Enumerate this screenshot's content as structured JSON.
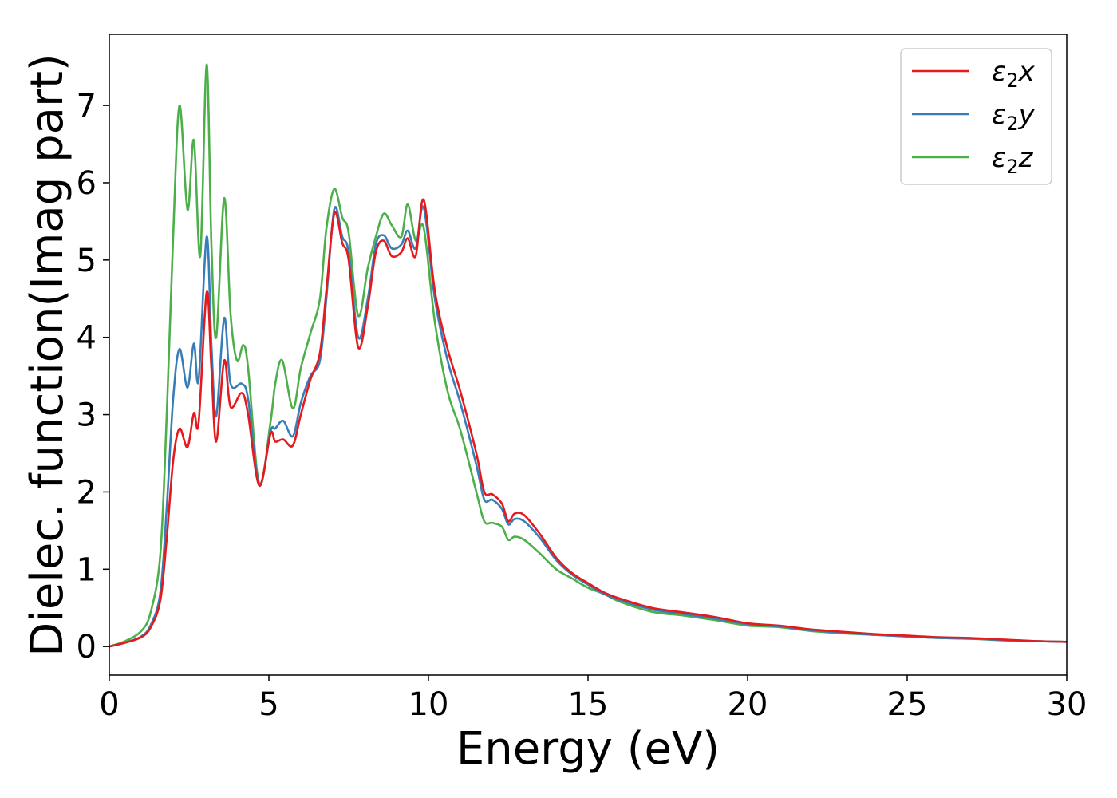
{
  "chart_data": {
    "type": "line",
    "xlabel": "Energy (eV)",
    "ylabel": "Dielec. function(Imag part)",
    "xlim": [
      0,
      30
    ],
    "ylim": [
      -0.37,
      7.92
    ],
    "xticks": [
      "0",
      "5",
      "10",
      "15",
      "20",
      "25",
      "30"
    ],
    "yticks": [
      "0",
      "1",
      "2",
      "3",
      "4",
      "5",
      "6",
      "7"
    ],
    "grid": false,
    "legend_position": "top-right",
    "colors": {
      "x": "#e41a1c",
      "y": "#377eb8",
      "z": "#4daf4a"
    },
    "series": [
      {
        "name": "ε2x",
        "name_base": "ε",
        "name_sub": "2",
        "name_suffix": "x",
        "points": [
          [
            0,
            0
          ],
          [
            0.5,
            0.05
          ],
          [
            1.0,
            0.12
          ],
          [
            1.3,
            0.25
          ],
          [
            1.6,
            0.6
          ],
          [
            1.8,
            1.4
          ],
          [
            2.0,
            2.4
          ],
          [
            2.2,
            2.82
          ],
          [
            2.45,
            2.58
          ],
          [
            2.65,
            3.02
          ],
          [
            2.8,
            2.9
          ],
          [
            3.05,
            4.58
          ],
          [
            3.2,
            3.6
          ],
          [
            3.35,
            2.65
          ],
          [
            3.6,
            3.7
          ],
          [
            3.8,
            3.1
          ],
          [
            4.15,
            3.28
          ],
          [
            4.35,
            3.0
          ],
          [
            4.7,
            2.08
          ],
          [
            5.05,
            2.75
          ],
          [
            5.2,
            2.65
          ],
          [
            5.45,
            2.68
          ],
          [
            5.75,
            2.6
          ],
          [
            6.0,
            3.0
          ],
          [
            6.3,
            3.45
          ],
          [
            6.6,
            3.8
          ],
          [
            6.8,
            4.6
          ],
          [
            7.05,
            5.6
          ],
          [
            7.3,
            5.22
          ],
          [
            7.5,
            5.0
          ],
          [
            7.8,
            3.87
          ],
          [
            8.1,
            4.4
          ],
          [
            8.35,
            5.1
          ],
          [
            8.6,
            5.25
          ],
          [
            8.85,
            5.05
          ],
          [
            9.15,
            5.1
          ],
          [
            9.35,
            5.28
          ],
          [
            9.6,
            5.05
          ],
          [
            9.85,
            5.78
          ],
          [
            10.2,
            4.6
          ],
          [
            10.6,
            3.85
          ],
          [
            11.0,
            3.3
          ],
          [
            11.5,
            2.5
          ],
          [
            11.75,
            2.0
          ],
          [
            12.0,
            1.97
          ],
          [
            12.3,
            1.85
          ],
          [
            12.5,
            1.62
          ],
          [
            12.7,
            1.72
          ],
          [
            13.0,
            1.7
          ],
          [
            13.5,
            1.45
          ],
          [
            14.0,
            1.15
          ],
          [
            14.5,
            0.95
          ],
          [
            15.0,
            0.82
          ],
          [
            15.5,
            0.7
          ],
          [
            16.0,
            0.62
          ],
          [
            17.0,
            0.5
          ],
          [
            18.0,
            0.44
          ],
          [
            19.0,
            0.38
          ],
          [
            20.0,
            0.3
          ],
          [
            21.0,
            0.27
          ],
          [
            22.0,
            0.22
          ],
          [
            23.0,
            0.19
          ],
          [
            24.0,
            0.16
          ],
          [
            25.0,
            0.14
          ],
          [
            26.0,
            0.12
          ],
          [
            27.0,
            0.11
          ],
          [
            28.0,
            0.09
          ],
          [
            29.0,
            0.07
          ],
          [
            30.0,
            0.06
          ]
        ]
      },
      {
        "name": "ε2y",
        "name_base": "ε",
        "name_sub": "2",
        "name_suffix": "y",
        "points": [
          [
            0,
            0
          ],
          [
            0.5,
            0.05
          ],
          [
            1.0,
            0.13
          ],
          [
            1.3,
            0.28
          ],
          [
            1.6,
            0.7
          ],
          [
            1.8,
            1.8
          ],
          [
            2.0,
            3.2
          ],
          [
            2.2,
            3.85
          ],
          [
            2.45,
            3.35
          ],
          [
            2.65,
            3.92
          ],
          [
            2.8,
            3.45
          ],
          [
            3.05,
            5.3
          ],
          [
            3.2,
            3.9
          ],
          [
            3.35,
            2.98
          ],
          [
            3.6,
            4.25
          ],
          [
            3.8,
            3.4
          ],
          [
            4.15,
            3.4
          ],
          [
            4.35,
            3.2
          ],
          [
            4.7,
            2.1
          ],
          [
            5.05,
            2.78
          ],
          [
            5.2,
            2.82
          ],
          [
            5.45,
            2.92
          ],
          [
            5.75,
            2.72
          ],
          [
            6.0,
            3.15
          ],
          [
            6.3,
            3.5
          ],
          [
            6.6,
            3.7
          ],
          [
            6.8,
            4.5
          ],
          [
            7.05,
            5.66
          ],
          [
            7.3,
            5.3
          ],
          [
            7.5,
            5.1
          ],
          [
            7.8,
            4.0
          ],
          [
            8.1,
            4.5
          ],
          [
            8.35,
            5.2
          ],
          [
            8.6,
            5.32
          ],
          [
            8.85,
            5.15
          ],
          [
            9.15,
            5.2
          ],
          [
            9.35,
            5.38
          ],
          [
            9.6,
            5.15
          ],
          [
            9.85,
            5.68
          ],
          [
            10.2,
            4.5
          ],
          [
            10.6,
            3.7
          ],
          [
            11.0,
            3.15
          ],
          [
            11.5,
            2.35
          ],
          [
            11.75,
            1.9
          ],
          [
            12.0,
            1.9
          ],
          [
            12.3,
            1.78
          ],
          [
            12.5,
            1.58
          ],
          [
            12.7,
            1.65
          ],
          [
            13.0,
            1.62
          ],
          [
            13.5,
            1.4
          ],
          [
            14.0,
            1.12
          ],
          [
            14.5,
            0.93
          ],
          [
            15.0,
            0.8
          ],
          [
            15.5,
            0.68
          ],
          [
            16.0,
            0.6
          ],
          [
            17.0,
            0.48
          ],
          [
            18.0,
            0.42
          ],
          [
            19.0,
            0.36
          ],
          [
            20.0,
            0.29
          ],
          [
            21.0,
            0.26
          ],
          [
            22.0,
            0.21
          ],
          [
            23.0,
            0.18
          ],
          [
            24.0,
            0.15
          ],
          [
            25.0,
            0.13
          ],
          [
            26.0,
            0.11
          ],
          [
            27.0,
            0.1
          ],
          [
            28.0,
            0.085
          ],
          [
            29.0,
            0.07
          ],
          [
            30.0,
            0.06
          ]
        ]
      },
      {
        "name": "ε2z",
        "name_base": "ε",
        "name_sub": "2",
        "name_suffix": "z",
        "points": [
          [
            0,
            0
          ],
          [
            0.5,
            0.07
          ],
          [
            1.0,
            0.2
          ],
          [
            1.3,
            0.45
          ],
          [
            1.6,
            1.2
          ],
          [
            1.8,
            3.0
          ],
          [
            2.0,
            5.3
          ],
          [
            2.2,
            7.0
          ],
          [
            2.45,
            5.65
          ],
          [
            2.65,
            6.55
          ],
          [
            2.85,
            5.05
          ],
          [
            3.05,
            7.53
          ],
          [
            3.2,
            5.2
          ],
          [
            3.35,
            4.0
          ],
          [
            3.6,
            5.8
          ],
          [
            3.8,
            4.3
          ],
          [
            4.0,
            3.7
          ],
          [
            4.2,
            3.9
          ],
          [
            4.35,
            3.6
          ],
          [
            4.7,
            2.1
          ],
          [
            5.05,
            2.9
          ],
          [
            5.2,
            3.4
          ],
          [
            5.42,
            3.7
          ],
          [
            5.75,
            3.08
          ],
          [
            6.0,
            3.6
          ],
          [
            6.3,
            4.05
          ],
          [
            6.6,
            4.5
          ],
          [
            6.8,
            5.4
          ],
          [
            7.05,
            5.92
          ],
          [
            7.3,
            5.55
          ],
          [
            7.5,
            5.35
          ],
          [
            7.8,
            4.28
          ],
          [
            8.1,
            4.9
          ],
          [
            8.35,
            5.3
          ],
          [
            8.6,
            5.6
          ],
          [
            8.85,
            5.45
          ],
          [
            9.15,
            5.3
          ],
          [
            9.35,
            5.72
          ],
          [
            9.6,
            5.25
          ],
          [
            9.85,
            5.42
          ],
          [
            10.2,
            4.2
          ],
          [
            10.6,
            3.3
          ],
          [
            11.0,
            2.8
          ],
          [
            11.5,
            2.0
          ],
          [
            11.75,
            1.62
          ],
          [
            12.0,
            1.6
          ],
          [
            12.3,
            1.55
          ],
          [
            12.5,
            1.38
          ],
          [
            12.7,
            1.42
          ],
          [
            13.0,
            1.38
          ],
          [
            13.5,
            1.2
          ],
          [
            14.0,
            1.0
          ],
          [
            14.5,
            0.88
          ],
          [
            15.0,
            0.76
          ],
          [
            15.5,
            0.68
          ],
          [
            16.0,
            0.58
          ],
          [
            17.0,
            0.45
          ],
          [
            18.0,
            0.4
          ],
          [
            19.0,
            0.34
          ],
          [
            20.0,
            0.27
          ],
          [
            21.0,
            0.25
          ],
          [
            22.0,
            0.2
          ],
          [
            23.0,
            0.17
          ],
          [
            24.0,
            0.15
          ],
          [
            25.0,
            0.13
          ],
          [
            26.0,
            0.11
          ],
          [
            27.0,
            0.1
          ],
          [
            28.0,
            0.08
          ],
          [
            29.0,
            0.07
          ],
          [
            30.0,
            0.06
          ]
        ]
      }
    ]
  }
}
